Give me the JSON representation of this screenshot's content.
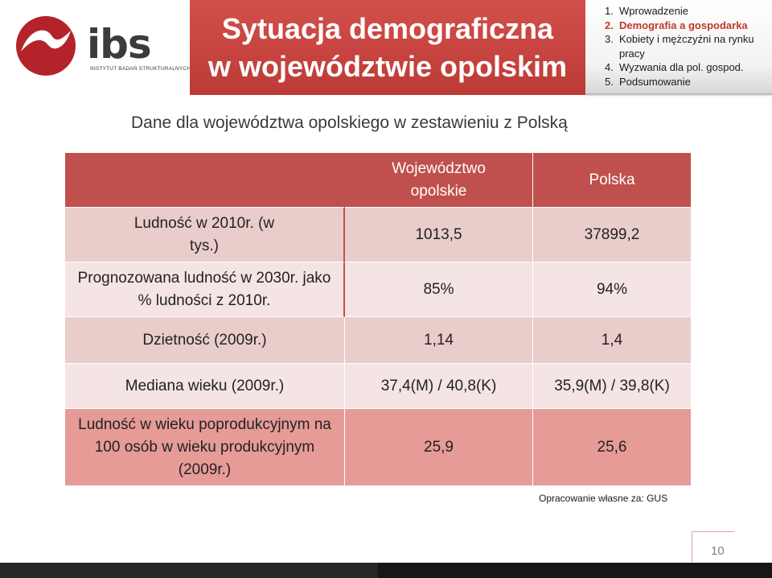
{
  "logo": {
    "text": "ibs",
    "subtitle": "INSTYTUT BADAŃ STRUKTURALNYCH",
    "mark_color": "#b4232a"
  },
  "header": {
    "title_line1": "Sytuacja demograficzna",
    "title_line2": "w województwie opolskim",
    "title_bg": "#c0504d"
  },
  "menu": {
    "items": [
      {
        "num": "1.",
        "label": "Wprowadzenie",
        "active": false
      },
      {
        "num": "2.",
        "label": "Demografia a gospodarka",
        "active": true
      },
      {
        "num": "3.",
        "label": "Kobiety i mężczyźni na rynku pracy",
        "active": false
      },
      {
        "num": "4.",
        "label": "Wyzwania dla pol. gospod.",
        "active": false
      },
      {
        "num": "5.",
        "label": "Podsumowanie",
        "active": false
      }
    ]
  },
  "subtitle": "Dane dla województwa opolskiego w zestawieniu z Polską",
  "table": {
    "columns": [
      "Województwo opolskie",
      "Polska"
    ],
    "rows": [
      {
        "label": "Ludność w 2010r. (w tys.)",
        "opolskie": "1013,5",
        "polska": "37899,2"
      },
      {
        "label": "Prognozowana ludność w 2030r. jako % ludności z 2010r.",
        "opolskie": "85%",
        "polska": "94%"
      },
      {
        "label": "Dzietność (2009r.)",
        "opolskie": "1,14",
        "polska": "1,4"
      },
      {
        "label": "Mediana wieku (2009r.)",
        "opolskie": "37,4(M) / 40,8(K)",
        "polska": "35,9(M) / 39,8(K)"
      },
      {
        "label": "Ludność w wieku poprodukcyjnym na 100 osób w wieku produkcyjnym (2009r.)",
        "opolskie": "25,9",
        "polska": "25,6"
      }
    ]
  },
  "source": "Opracowanie własne za: GUS",
  "page_number": "10"
}
